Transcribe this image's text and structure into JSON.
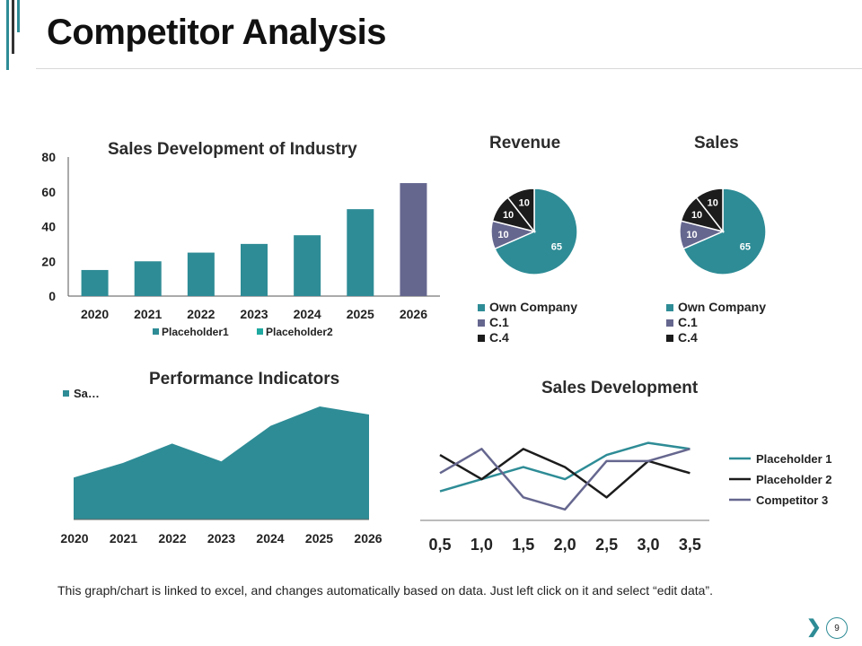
{
  "page": {
    "title": "Competitor Analysis",
    "footer": "This graph/chart is linked to excel, and changes automatically  based on data. Just left click on it and select “edit data”.",
    "page_number": "9",
    "next_icon": "chevron-right-icon"
  },
  "colors": {
    "teal": "#2e8c96",
    "slate": "#66678f",
    "dark": "#1c1c1c",
    "teal_bright": "#1fa9a0"
  },
  "chart_data": [
    {
      "id": "industry",
      "type": "bar",
      "title": "Sales Development of Industry",
      "categories": [
        "2020",
        "2021",
        "2022",
        "2023",
        "2024",
        "2025",
        "2026"
      ],
      "values": [
        15,
        20,
        25,
        30,
        35,
        50,
        65
      ],
      "highlight_index": 6,
      "ylim": [
        0,
        80
      ],
      "yticks": [
        "0",
        "20",
        "40",
        "60",
        "80"
      ],
      "legend": [
        "Placeholder1",
        "Placeholder2"
      ],
      "legend_position": "bottom"
    },
    {
      "id": "revenue",
      "type": "pie",
      "title": "Revenue",
      "labels": [
        "Own Company",
        "C.1",
        "C.4"
      ],
      "slices": [
        {
          "label": "Own Company",
          "value": 65,
          "text": "65"
        },
        {
          "label": "C.1",
          "value": 10,
          "text": "10"
        },
        {
          "label": "C.4",
          "value": 10,
          "text": "10"
        },
        {
          "label": "",
          "value": 10,
          "text": "10"
        }
      ]
    },
    {
      "id": "sales",
      "type": "pie",
      "title": "Sales",
      "labels": [
        "Own Company",
        "C.1",
        "C.4"
      ],
      "slices": [
        {
          "label": "Own Company",
          "value": 65,
          "text": "65"
        },
        {
          "label": "C.1",
          "value": 10,
          "text": "10"
        },
        {
          "label": "C.4",
          "value": 10,
          "text": "10"
        },
        {
          "label": "",
          "value": 10,
          "text": "10"
        }
      ]
    },
    {
      "id": "performance",
      "type": "area",
      "title": "Performance Indicators",
      "legend": "Sa…",
      "categories": [
        "2020",
        "2021",
        "2022",
        "2023",
        "2024",
        "2025",
        "2026"
      ],
      "values": [
        26,
        35,
        47,
        36,
        58,
        70,
        65
      ],
      "ylim": [
        0,
        80
      ]
    },
    {
      "id": "sales_dev",
      "type": "line",
      "title": "Sales Development",
      "x": [
        "0,5",
        "1,0",
        "1,5",
        "2,0",
        "2,5",
        "3,0",
        "3,5"
      ],
      "ylim": [
        0,
        10
      ],
      "series": [
        {
          "name": "Placeholder 1",
          "values": [
            2.4,
            3.4,
            4.4,
            3.4,
            5.4,
            6.4,
            5.9
          ]
        },
        {
          "name": "Placeholder 2",
          "values": [
            5.4,
            3.4,
            5.9,
            4.4,
            1.9,
            4.9,
            3.9
          ]
        },
        {
          "name": "Competitor 3",
          "values": [
            3.9,
            5.9,
            1.9,
            0.9,
            4.9,
            4.9,
            5.9
          ]
        }
      ]
    }
  ]
}
